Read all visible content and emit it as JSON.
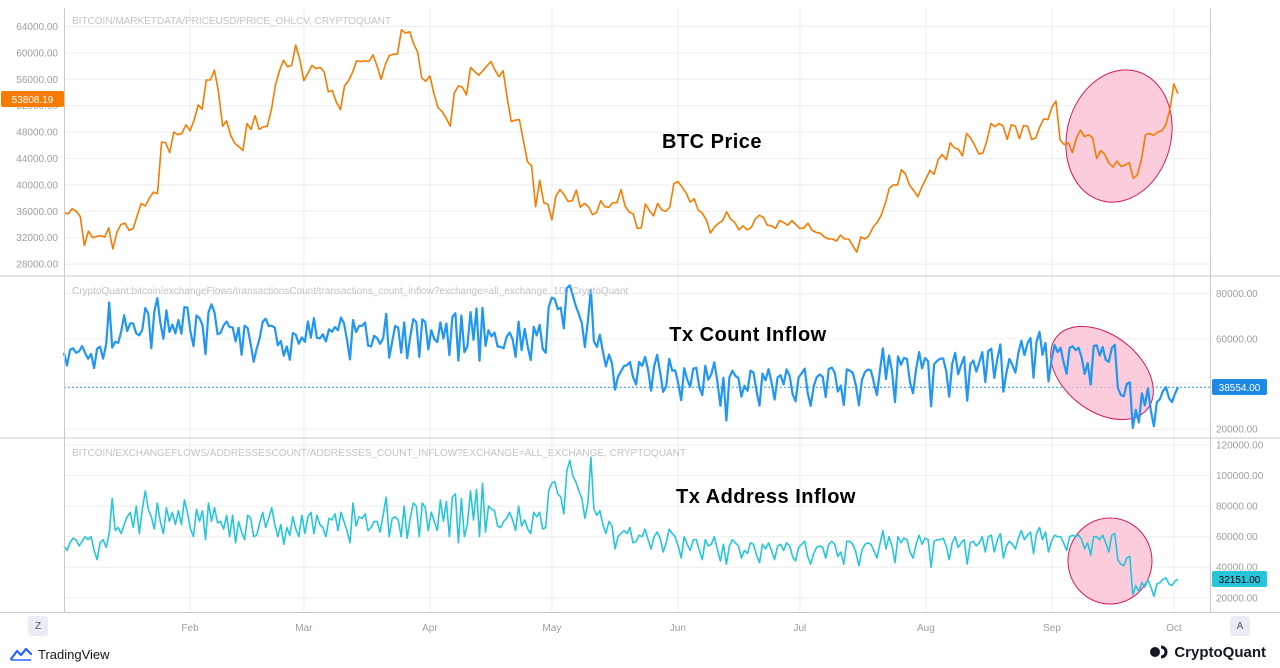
{
  "colors": {
    "price": "#f57c00",
    "tx_count": "#2196f3",
    "addresses": "#26c6da",
    "ellipse_fill": "#f8bbd0",
    "ellipse_stroke": "#d81b60",
    "grid": "#eeeeee",
    "axis_text": "#9e9e9e"
  },
  "footer": {
    "left_brand": "TradingView",
    "right_brand": "CryptoQuant",
    "left_icon": "tradingview-logo-icon",
    "right_icon": "cryptoquant-logo-icon"
  },
  "corner_buttons": {
    "zoom_label": "Z",
    "auto_label": "A"
  },
  "chart_data": [
    {
      "type": "line",
      "source_label": "BITCOIN/MARKETDATA/PRICEUSD/PRICE_OHLCV, CRYPTOQUANT",
      "annotation": "BTC Price",
      "axis_side": "left",
      "last_value_label": "53808.19",
      "ylim": [
        26500,
        66500
      ],
      "yticks": [
        "28000.00",
        "32000.00",
        "36000.00",
        "40000.00",
        "44000.00",
        "48000.00",
        "52000.00",
        "56000.00",
        "60000.00",
        "64000.00"
      ],
      "ytick_values": [
        28000,
        32000,
        36000,
        40000,
        44000,
        48000,
        52000,
        56000,
        60000,
        64000
      ],
      "values": [
        35800,
        35600,
        36400,
        36000,
        35200,
        30800,
        33000,
        32000,
        32200,
        32300,
        32100,
        33500,
        30300,
        32800,
        34000,
        34200,
        33100,
        33400,
        35300,
        37200,
        36800,
        38000,
        38900,
        38700,
        46500,
        46400,
        44900,
        48000,
        47600,
        47800,
        49100,
        48200,
        49800,
        52100,
        51500,
        55900,
        55900,
        57400,
        54100,
        48900,
        49700,
        47500,
        46300,
        45800,
        45200,
        49300,
        48400,
        50500,
        48400,
        48800,
        48900,
        51400,
        55100,
        57300,
        58900,
        57900,
        58100,
        61200,
        59000,
        55800,
        56900,
        58100,
        57600,
        57800,
        57100,
        54100,
        54300,
        52500,
        51400,
        55000,
        55800,
        57100,
        58800,
        58700,
        58800,
        58700,
        59700,
        58000,
        56000,
        58200,
        59600,
        59800,
        59800,
        63500,
        63000,
        63200,
        61400,
        60100,
        56200,
        55700,
        56500,
        53800,
        51700,
        51100,
        50100,
        48900,
        53900,
        55000,
        54800,
        53600,
        57800,
        57200,
        56600,
        57300,
        58000,
        58700,
        57400,
        56400,
        57300,
        53200,
        49600,
        49800,
        49900,
        46700,
        43500,
        42900,
        36700,
        40700,
        37300,
        37100,
        34700,
        38300,
        39300,
        38500,
        37500,
        37600,
        39200,
        36600,
        37200,
        36700,
        35500,
        35800,
        37600,
        36700,
        36600,
        37300,
        37300,
        39300,
        36800,
        35900,
        35600,
        33400,
        33500,
        37100,
        36100,
        35300,
        37200,
        36200,
        36000,
        36600,
        40200,
        40500,
        39700,
        38800,
        37400,
        37900,
        36200,
        35700,
        34700,
        32700,
        33600,
        34200,
        34600,
        35900,
        34800,
        34300,
        33200,
        33800,
        33200,
        33500,
        34800,
        35400,
        35100,
        33900,
        33800,
        33400,
        34600,
        34300,
        33900,
        34600,
        34000,
        33400,
        33500,
        34200,
        33100,
        32800,
        32700,
        32100,
        31800,
        31800,
        31500,
        32400,
        31800,
        31800,
        30800,
        29800,
        32100,
        31800,
        32300,
        33600,
        34300,
        35400,
        37200,
        39500,
        40000,
        40000,
        42300,
        41600,
        39900,
        39200,
        38200,
        39700,
        40900,
        42200,
        41600,
        43800,
        44600,
        43800,
        46400,
        45600,
        45400,
        44400,
        47800,
        47100,
        46000,
        44700,
        44800,
        46700,
        49300,
        48800,
        49300,
        48900,
        46900,
        49100,
        48900,
        47000,
        49000,
        48900,
        46900,
        47100,
        48800,
        50000,
        49900,
        51800,
        52700,
        46800,
        46100,
        46400,
        44900,
        47100,
        48300,
        47300,
        47600,
        47100,
        44000,
        45200,
        44600,
        43300,
        42700,
        43600,
        42800,
        43000,
        43400,
        41000,
        41500,
        43800,
        47600,
        47800,
        47500,
        48000,
        48200,
        49100,
        51500,
        55300,
        53800
      ],
      "x_labels": [
        "Feb",
        "Mar",
        "Apr",
        "May",
        "Jun",
        "Jul",
        "Aug",
        "Sep",
        "Oct"
      ],
      "x_label_days": [
        31,
        59,
        90,
        120,
        151,
        181,
        212,
        243,
        273
      ]
    },
    {
      "type": "line",
      "source_label": "CryptoQuant:bitcoin/exchangeFlows/transactionsCount/transactions_count_inflow?exchange=all_exchange, 1D, CryptoQuant",
      "annotation": "Tx Count Inflow",
      "axis_side": "right",
      "last_value_label": "38554.00",
      "ylim": [
        17000,
        86000
      ],
      "yticks": [
        "20000.00",
        "40000.00",
        "60000.00",
        "80000.00"
      ],
      "ytick_values": [
        20000,
        40000,
        60000,
        80000
      ],
      "ref_line": 38554,
      "values": [
        53800,
        48200,
        55100,
        55800,
        53800,
        54400,
        56800,
        53700,
        51200,
        53300,
        47000,
        55600,
        56500,
        51200,
        57600,
        76000,
        56100,
        58700,
        58200,
        63200,
        70400,
        63400,
        66800,
        66800,
        62400,
        61500,
        64000,
        73600,
        71000,
        55800,
        72000,
        78000,
        67300,
        60000,
        72600,
        63000,
        66300,
        62400,
        68300,
        62200,
        74000,
        73800,
        63000,
        56700,
        70300,
        69100,
        66100,
        53200,
        71700,
        75200,
        71700,
        62000,
        62600,
        65900,
        67600,
        65200,
        65100,
        58800,
        64900,
        52900,
        65800,
        64700,
        57600,
        49800,
        55700,
        60200,
        67500,
        68900,
        65600,
        65800,
        64900,
        57100,
        59000,
        52500,
        56600,
        50700,
        62500,
        61800,
        57800,
        60600,
        58600,
        67600,
        60500,
        69100,
        60400,
        60200,
        62000,
        58800,
        64200,
        63100,
        65200,
        63800,
        69400,
        66800,
        59600,
        50900,
        68300,
        63000,
        65600,
        65800,
        67200,
        57000,
        56600,
        61300,
        60300,
        57800,
        60100,
        71000,
        51600,
        58700,
        65700,
        64900,
        53800,
        67200,
        51400,
        60800,
        68700,
        67400,
        52000,
        68600,
        67400,
        55300,
        63800,
        59900,
        58500,
        67300,
        60100,
        66800,
        52800,
        69700,
        71300,
        50300,
        70300,
        54000,
        56700,
        71800,
        59500,
        73400,
        50300,
        73700,
        56800,
        63800,
        61100,
        62800,
        56600,
        56400,
        55800,
        60800,
        62800,
        59800,
        52000,
        67600,
        54900,
        64400,
        56600,
        50600,
        65300,
        61500,
        66200,
        55600,
        53800,
        74100,
        78200,
        77500,
        73100,
        73800,
        64600,
        82400,
        83600,
        79200,
        74500,
        71000,
        66700,
        56300,
        68100,
        81700,
        58800,
        56400,
        61800,
        54300,
        47800,
        53000,
        49200,
        37500,
        43200,
        45600,
        47900,
        48300,
        49700,
        43100,
        39800,
        49800,
        48000,
        52000,
        46200,
        37000,
        47600,
        52900,
        45300,
        36500,
        38900,
        51100,
        45900,
        46100,
        40400,
        32800,
        47000,
        42000,
        38800,
        46800,
        47100,
        38600,
        35000,
        48100,
        41900,
        44300,
        49600,
        41200,
        30300,
        42800,
        23800,
        42900,
        45900,
        43600,
        42700,
        34400,
        39200,
        37000,
        45900,
        45100,
        36900,
        30400,
        44600,
        41600,
        46600,
        40800,
        33100,
        42900,
        43900,
        39800,
        46500,
        43700,
        35500,
        32400,
        42900,
        44700,
        46800,
        36000,
        30300,
        38900,
        43000,
        44200,
        43200,
        34200,
        46600,
        47300,
        44900,
        36700,
        39300,
        30700,
        46500,
        45900,
        45000,
        39500,
        30600,
        41800,
        45200,
        46400,
        46000,
        40600,
        35100,
        45700,
        55800,
        42200,
        52600,
        45700,
        32000,
        52200,
        48500,
        51600,
        51000,
        40700,
        35900,
        46500,
        54100,
        46900,
        51500,
        50100,
        30100,
        48700,
        50200,
        51200,
        51300,
        45800,
        34400,
        48900,
        53800,
        44300,
        48600,
        52000,
        32600,
        48700,
        50400,
        45500,
        49600,
        54100,
        40800,
        54600,
        55600,
        42700,
        51300,
        57500,
        36600,
        44900,
        51100,
        48300,
        45000,
        53800,
        59100,
        52800,
        58000,
        60400,
        42800,
        58600,
        63100,
        52900,
        58200,
        41100,
        50700,
        57200,
        54100,
        56000,
        49600,
        44500,
        56000,
        56700,
        55000,
        56000,
        51600,
        44400,
        49300,
        39700,
        56800,
        57100,
        52600,
        56400,
        50700,
        49800,
        55900,
        57300,
        38300,
        35200,
        34600,
        40100,
        40700,
        20600,
        28600,
        23000,
        35900,
        30600,
        38100,
        28200,
        21300,
        32000,
        33300,
        36800,
        38600,
        33700,
        32000,
        35700,
        38600
      ],
      "values_note": ""
    },
    {
      "type": "line",
      "source_label": "BITCOIN/EXCHANGEFLOWS/ADDRESSESCOUNT/ADDRESSES_COUNT_INFLOW?EXCHANGE=ALL_EXCHANGE, CRYPTOQUANT",
      "annotation": "Tx Address Inflow",
      "axis_side": "right",
      "last_value_label": "32151.00",
      "ylim": [
        12000,
        122000
      ],
      "yticks": [
        "20000.00",
        "40000.00",
        "60000.00",
        "80000.00",
        "100000.00",
        "120000.00"
      ],
      "ytick_values": [
        20000,
        40000,
        60000,
        80000,
        100000,
        120000
      ],
      "values": [
        54000,
        51000,
        56000,
        59000,
        58000,
        54000,
        57000,
        60000,
        58000,
        60000,
        51000,
        45000,
        56000,
        58000,
        53000,
        62000,
        85000,
        64000,
        66000,
        62000,
        68000,
        73000,
        76000,
        66000,
        80000,
        62000,
        78000,
        90000,
        78000,
        73000,
        65000,
        82000,
        70000,
        62000,
        79000,
        70000,
        76000,
        68000,
        77000,
        68000,
        84000,
        76000,
        65000,
        60000,
        78000,
        70000,
        77000,
        58000,
        82000,
        70000,
        79000,
        69000,
        70000,
        65000,
        74000,
        60000,
        74000,
        56000,
        70000,
        63000,
        58000,
        74000,
        72000,
        60000,
        61000,
        69000,
        76000,
        66000,
        72000,
        79000,
        68000,
        60000,
        68000,
        55000,
        66000,
        61000,
        73000,
        65000,
        60000,
        74000,
        62000,
        73000,
        76000,
        62000,
        74000,
        68000,
        66000,
        60000,
        72000,
        71000,
        75000,
        64000,
        76000,
        70000,
        64000,
        56000,
        82000,
        67000,
        73000,
        72000,
        75000,
        64000,
        66000,
        70000,
        70000,
        63000,
        74000,
        86000,
        60000,
        72000,
        73000,
        71000,
        60000,
        80000,
        59000,
        72000,
        82000,
        80000,
        60000,
        82000,
        79000,
        64000,
        76000,
        70000,
        64000,
        84000,
        70000,
        83000,
        60000,
        86000,
        88000,
        56000,
        85000,
        60000,
        68000,
        90000,
        71000,
        91000,
        60000,
        95000,
        63000,
        80000,
        78000,
        77000,
        67000,
        66000,
        70000,
        72000,
        76000,
        71000,
        64000,
        80000,
        67000,
        71000,
        65000,
        62000,
        76000,
        73000,
        76000,
        65000,
        66000,
        90000,
        95000,
        96000,
        88000,
        86000,
        75000,
        103000,
        110000,
        100000,
        96000,
        90000,
        85000,
        72000,
        82000,
        112000,
        78000,
        74000,
        77000,
        68000,
        62000,
        70000,
        67000,
        52000,
        60000,
        62000,
        64000,
        62000,
        66000,
        56000,
        57000,
        61000,
        60000,
        65000,
        58000,
        52000,
        60000,
        63000,
        59000,
        50000,
        56000,
        65000,
        62000,
        60000,
        54000,
        46000,
        60000,
        55000,
        51000,
        58000,
        58000,
        51000,
        45000,
        58000,
        54000,
        55000,
        60000,
        52000,
        44000,
        55000,
        42000,
        54000,
        58000,
        56000,
        54000,
        46000,
        51000,
        49000,
        56000,
        55000,
        48000,
        43000,
        55000,
        52000,
        56000,
        51000,
        45000,
        54000,
        55000,
        51000,
        56000,
        54000,
        47000,
        44000,
        53000,
        55000,
        57000,
        47000,
        42000,
        49000,
        53000,
        54000,
        53000,
        46000,
        55000,
        57000,
        55000,
        47000,
        50000,
        42000,
        57000,
        57000,
        55000,
        50000,
        41000,
        51000,
        55000,
        56000,
        55000,
        51000,
        46000,
        55000,
        64000,
        52000,
        60000,
        54000,
        43000,
        60000,
        56000,
        59000,
        58000,
        50000,
        46000,
        55000,
        61000,
        55000,
        59000,
        58000,
        40000,
        57000,
        58000,
        58000,
        59000,
        54000,
        45000,
        56000,
        60000,
        53000,
        56000,
        58000,
        42000,
        56000,
        57000,
        54000,
        56000,
        60000,
        50000,
        60000,
        61000,
        50000,
        58000,
        62000,
        46000,
        54000,
        57000,
        55000,
        52000,
        59000,
        64000,
        58000,
        61000,
        63000,
        49000,
        62000,
        66000,
        58000,
        63000,
        50000,
        57000,
        61000,
        60000,
        60000,
        56000,
        51000,
        60000,
        61000,
        60000,
        61000,
        58000,
        52000,
        56000,
        48000,
        60000,
        60000,
        58000,
        61000,
        56000,
        50000,
        61000,
        62000,
        45000,
        42000,
        41000,
        46000,
        47000,
        22000,
        28000,
        24000,
        30000,
        27000,
        32000,
        27000,
        21000,
        29000,
        30000,
        32000,
        33000,
        29000,
        28000,
        31000,
        32000
      ]
    }
  ]
}
